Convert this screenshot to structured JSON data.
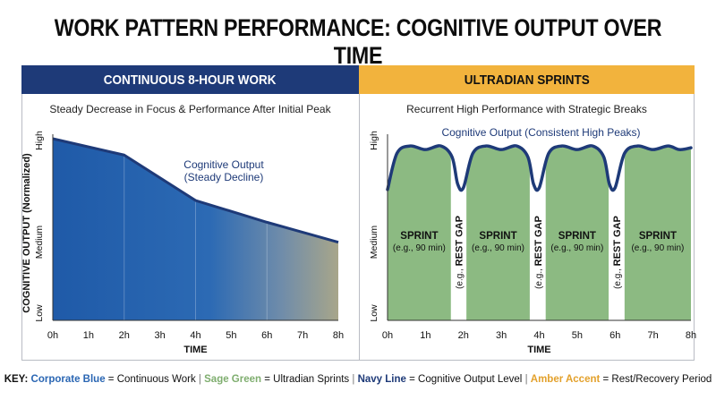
{
  "title": "WORK PATTERN PERFORMANCE: COGNITIVE OUTPUT OVER TIME",
  "colors": {
    "corporate_blue": "#2a66b3",
    "sage_green": "#8cba82",
    "navy_line": "#1e3a78",
    "amber_accent": "#f2b33d"
  },
  "legend": {
    "key_label": "KEY:",
    "items": [
      {
        "term": "Corporate Blue",
        "desc": " = Continuous Work"
      },
      {
        "term": "Sage Green",
        "desc": " = Ultradian Sprints"
      },
      {
        "term": "Navy Line",
        "desc": " = Cognitive Output Level"
      },
      {
        "term": "Amber Accent",
        "desc": " = Rest/Recovery Period"
      }
    ]
  },
  "chart_data": [
    {
      "type": "area",
      "header": "CONTINUOUS 8-HOUR WORK",
      "title": "Steady Decrease in Focus & Performance After Initial Peak",
      "xlabel": "TIME",
      "ylabel": "COGNITIVE OUTPUT (Normalized)",
      "x_ticks": [
        "0h",
        "1h",
        "2h",
        "3h",
        "4h",
        "5h",
        "6h",
        "7h",
        "8h"
      ],
      "y_ticks": [
        "Low",
        "Medium",
        "High"
      ],
      "xlim": [
        0,
        8
      ],
      "ylim": [
        0,
        1
      ],
      "x": [
        0,
        2,
        4,
        6,
        8
      ],
      "y": [
        1.0,
        0.91,
        0.66,
        0.54,
        0.43
      ],
      "annotation": [
        "Cognitive Output",
        "(Steady Decline)"
      ],
      "grid": false
    },
    {
      "type": "line",
      "header": "ULTRADIAN SPRINTS",
      "title": "Recurrent High Performance with Strategic Breaks",
      "xlabel": "TIME",
      "x_ticks": [
        "0h",
        "1h",
        "2h",
        "3h",
        "4h",
        "5h",
        "6h",
        "7h",
        "8h"
      ],
      "y_ticks": [
        "Low",
        "Medium",
        "High"
      ],
      "xlim": [
        0,
        8
      ],
      "ylim": [
        0,
        1
      ],
      "series_name": "Cognitive Output (Consistent High Peaks)",
      "x": [
        0,
        0.25,
        0.6,
        1.0,
        1.4,
        1.7,
        1.85,
        2.0,
        2.25,
        2.6,
        3.0,
        3.4,
        3.7,
        3.85,
        4.0,
        4.25,
        4.6,
        5.0,
        5.4,
        5.7,
        5.85,
        6.0,
        6.25,
        6.6,
        7.0,
        7.4,
        7.7,
        8.0
      ],
      "y": [
        0.72,
        0.92,
        0.96,
        0.94,
        0.96,
        0.9,
        0.75,
        0.73,
        0.92,
        0.96,
        0.94,
        0.96,
        0.9,
        0.75,
        0.73,
        0.92,
        0.96,
        0.94,
        0.96,
        0.9,
        0.75,
        0.73,
        0.92,
        0.96,
        0.94,
        0.96,
        0.94,
        0.95
      ],
      "sprints": [
        {
          "start": 0,
          "end": 1.67,
          "label": "SPRINT",
          "note": "(e.g., 90 min)"
        },
        {
          "start": 2.08,
          "end": 3.75,
          "label": "SPRINT",
          "note": "(e.g., 90 min)"
        },
        {
          "start": 4.17,
          "end": 5.83,
          "label": "SPRINT",
          "note": "(e.g., 90 min)"
        },
        {
          "start": 6.25,
          "end": 8.0,
          "label": "SPRINT",
          "note": "(e.g., 90 min)"
        }
      ],
      "rest_gaps": [
        {
          "start": 1.67,
          "end": 2.08,
          "label": "REST GAP",
          "note": "(e.g.,"
        },
        {
          "start": 3.75,
          "end": 4.17,
          "label": "REST GAP",
          "note": "(e.g.,"
        },
        {
          "start": 5.83,
          "end": 6.25,
          "label": "REST GAP",
          "note": "(e.g.,"
        }
      ],
      "grid": false
    }
  ]
}
